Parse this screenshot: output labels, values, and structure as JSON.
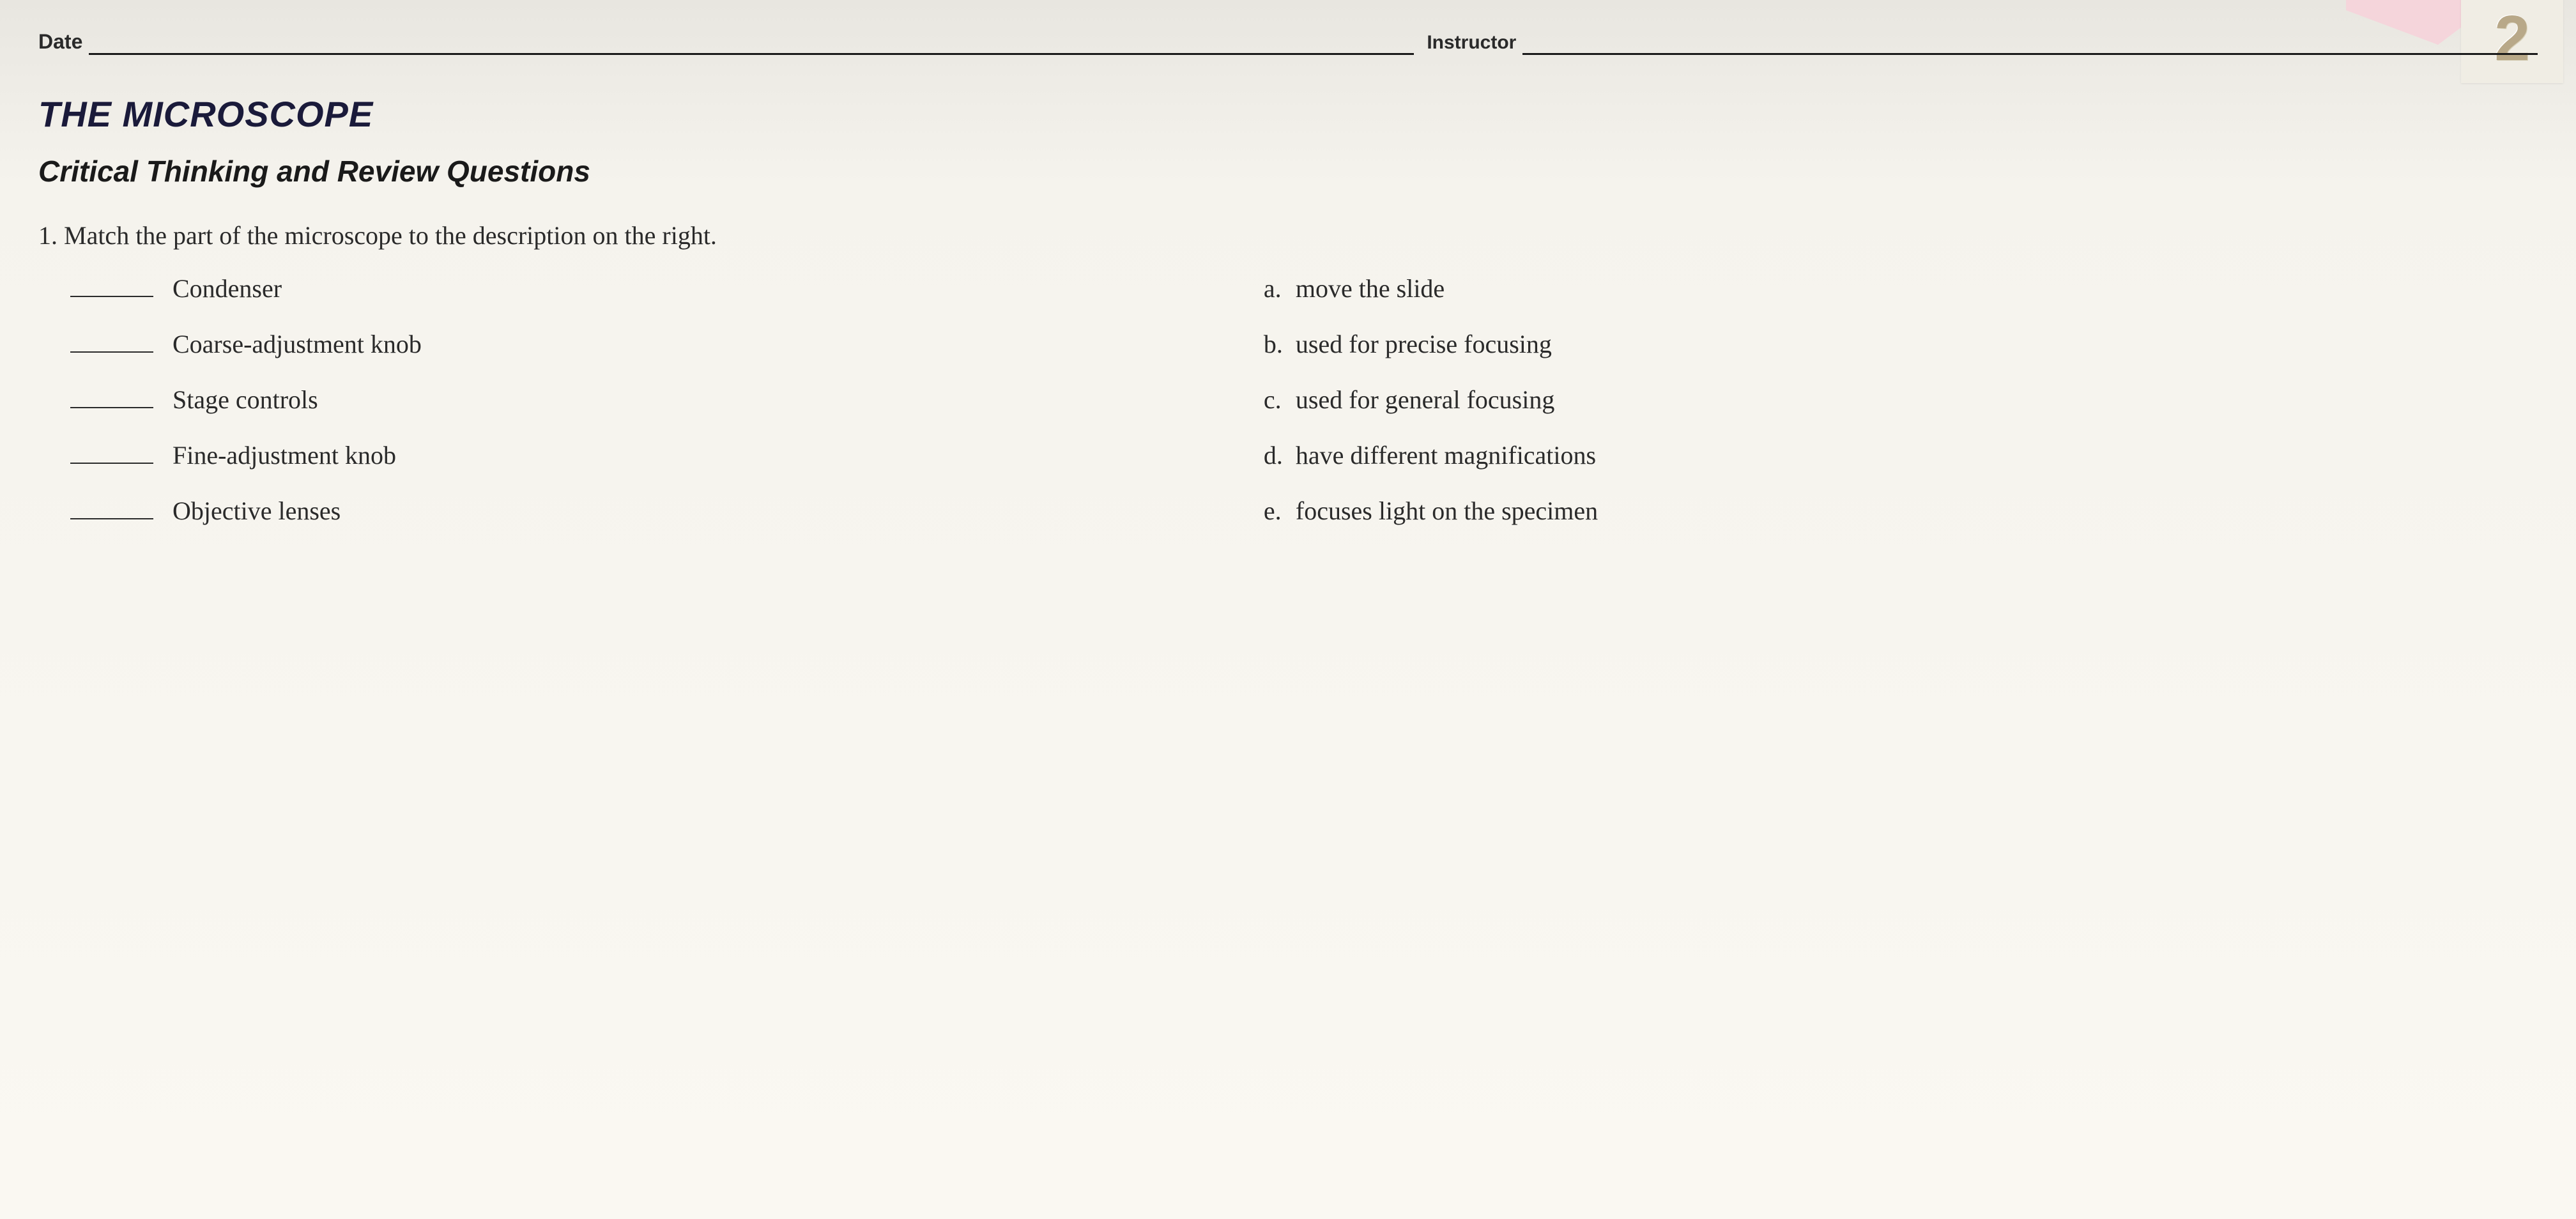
{
  "header": {
    "date_label": "Date",
    "instructor_label": "Instructor",
    "chapter_number": "2"
  },
  "title": "THE MICROSCOPE",
  "subtitle": "Critical Thinking and Review Questions",
  "question": {
    "number": "1.",
    "text": "Match the part of the microscope to the description on the right."
  },
  "matching": {
    "terms": [
      "Condenser",
      "Coarse-adjustment knob",
      "Stage controls",
      "Fine-adjustment knob",
      "Objective lenses"
    ],
    "descriptions": [
      {
        "letter": "a.",
        "text": "move the slide"
      },
      {
        "letter": "b.",
        "text": "used for precise focusing"
      },
      {
        "letter": "c.",
        "text": "used for general focusing"
      },
      {
        "letter": "d.",
        "text": "have different magnifications"
      },
      {
        "letter": "e.",
        "text": "focuses light on the specimen"
      }
    ]
  },
  "colors": {
    "background_top": "#e8e6e0",
    "background_bottom": "#faf8f2",
    "title_color": "#1a1a3a",
    "text_color": "#2a2a2a",
    "pink_shape": "#f5d5db",
    "white_square": "#f0ede4",
    "chapter_num_color": "#b8a888",
    "line_color": "#1a1a1a"
  },
  "typography": {
    "title_fontsize": 56,
    "subtitle_fontsize": 46,
    "body_fontsize": 40,
    "header_label_fontsize": 32,
    "chapter_num_fontsize": 100
  }
}
